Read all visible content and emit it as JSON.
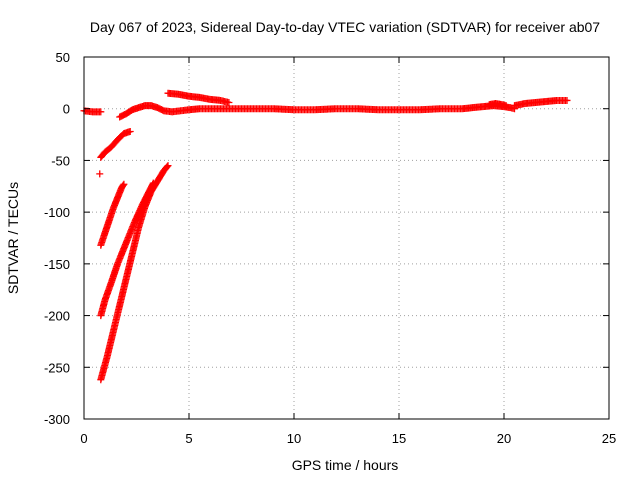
{
  "chart_data": {
    "type": "scatter",
    "title": "Day 067 of 2023, Sidereal Day-to-day VTEC variation (SDTVAR) for receiver ab07",
    "xlabel": "GPS time / hours",
    "ylabel": "SDTVAR / TECUs",
    "xlim": [
      0,
      25
    ],
    "ylim": [
      -300,
      50
    ],
    "xticks": [
      0,
      5,
      10,
      15,
      20,
      25
    ],
    "yticks": [
      -300,
      -250,
      -200,
      -150,
      -100,
      -50,
      0,
      50
    ],
    "grid": true,
    "marker": "+",
    "color": "#ff0000",
    "series": [
      {
        "segments": [
          [
            [
              0.0,
              -2
            ],
            [
              0.4,
              -3
            ],
            [
              0.8,
              -3
            ]
          ],
          [
            [
              0.75,
              -63
            ]
          ],
          [
            [
              0.8,
              -47
            ],
            [
              1.0,
              -42
            ],
            [
              1.3,
              -37
            ],
            [
              1.6,
              -30
            ],
            [
              1.9,
              -24
            ],
            [
              2.2,
              -22
            ]
          ],
          [
            [
              0.8,
              -132
            ],
            [
              1.0,
              -120
            ],
            [
              1.2,
              -108
            ],
            [
              1.4,
              -96
            ],
            [
              1.6,
              -86
            ],
            [
              1.8,
              -76
            ],
            [
              1.9,
              -73
            ]
          ],
          [
            [
              0.8,
              -200
            ],
            [
              1.0,
              -185
            ],
            [
              1.3,
              -168
            ],
            [
              1.6,
              -150
            ],
            [
              2.0,
              -130
            ],
            [
              2.4,
              -110
            ],
            [
              2.8,
              -92
            ],
            [
              3.1,
              -80
            ],
            [
              3.3,
              -72
            ]
          ],
          [
            [
              0.8,
              -262
            ],
            [
              1.1,
              -240
            ],
            [
              1.4,
              -215
            ],
            [
              1.7,
              -190
            ],
            [
              2.0,
              -165
            ],
            [
              2.3,
              -140
            ],
            [
              2.6,
              -115
            ],
            [
              2.9,
              -95
            ],
            [
              3.2,
              -80
            ],
            [
              3.5,
              -70
            ],
            [
              3.8,
              -60
            ],
            [
              4.0,
              -55
            ]
          ],
          [
            [
              1.7,
              -8
            ],
            [
              2.0,
              -5
            ],
            [
              2.3,
              -1
            ],
            [
              2.6,
              1
            ],
            [
              2.9,
              3
            ],
            [
              3.2,
              3
            ],
            [
              3.5,
              1
            ],
            [
              3.8,
              -2
            ],
            [
              4.2,
              -3
            ],
            [
              4.6,
              -2
            ],
            [
              5.0,
              -1
            ],
            [
              5.5,
              0
            ],
            [
              6.0,
              0
            ],
            [
              6.5,
              0
            ],
            [
              7.0,
              0
            ],
            [
              8.0,
              0
            ],
            [
              9.0,
              0
            ],
            [
              10.0,
              -1
            ],
            [
              11.0,
              -1
            ],
            [
              12.0,
              0
            ],
            [
              13.0,
              0
            ],
            [
              14.0,
              -1
            ],
            [
              15.0,
              -1
            ],
            [
              16.0,
              -1
            ],
            [
              17.0,
              0
            ],
            [
              18.0,
              0
            ],
            [
              18.5,
              1
            ],
            [
              19.0,
              2
            ],
            [
              19.5,
              3
            ],
            [
              20.0,
              2
            ],
            [
              20.3,
              1
            ],
            [
              20.5,
              0
            ]
          ],
          [
            [
              4.0,
              15
            ],
            [
              4.5,
              14
            ],
            [
              5.0,
              12
            ],
            [
              5.5,
              11
            ],
            [
              6.0,
              9
            ],
            [
              6.5,
              8
            ],
            [
              6.9,
              6
            ]
          ],
          [
            [
              19.3,
              4
            ],
            [
              19.6,
              5
            ],
            [
              19.9,
              4
            ],
            [
              20.1,
              3
            ]
          ],
          [
            [
              20.5,
              3
            ],
            [
              21.0,
              5
            ],
            [
              21.5,
              6
            ],
            [
              22.0,
              7
            ],
            [
              22.5,
              8
            ],
            [
              23.0,
              8
            ]
          ]
        ]
      }
    ]
  }
}
